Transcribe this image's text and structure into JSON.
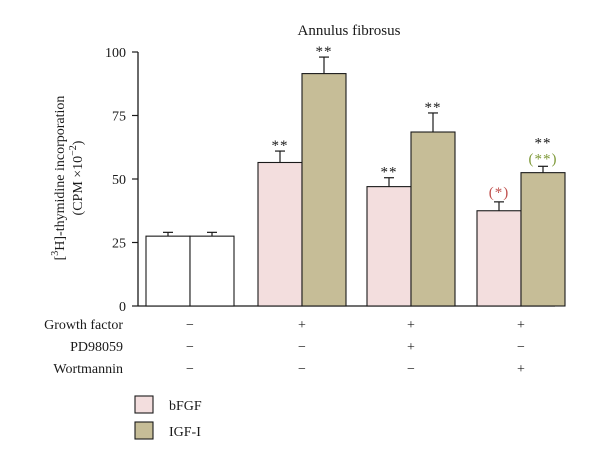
{
  "chart_data": {
    "type": "bar",
    "title": "Annulus fibrosus",
    "ylabel_prefix": "[",
    "ylabel_sup": "3",
    "ylabel_main": "H]-thymidine incorporation",
    "ylabel_unit": "(CPM ×10",
    "ylabel_unit_sup": "−2",
    "ylabel_unit_end": ")",
    "ylim": [
      0,
      100
    ],
    "yticks": [
      "0",
      "25",
      "50",
      "75",
      "100"
    ],
    "grid": false,
    "legend_position": "bottom-left",
    "groups": [
      {
        "growth_factor": "−",
        "pd98059": "−",
        "wortmannin": "−",
        "bars": [
          {
            "series": "control",
            "value": 27.5,
            "error": 1.5,
            "annotation": "",
            "annotation_color": ""
          },
          {
            "series": "control",
            "value": 27.5,
            "error": 1.5,
            "annotation": "",
            "annotation_color": ""
          }
        ]
      },
      {
        "growth_factor": "+",
        "pd98059": "−",
        "wortmannin": "−",
        "bars": [
          {
            "series": "bFGF",
            "value": 56.5,
            "error": 4.5,
            "annotation": "**",
            "annotation_color": "#1a1a1a"
          },
          {
            "series": "IGF-I",
            "value": 91.5,
            "error": 6.5,
            "annotation": "**",
            "annotation_color": "#1a1a1a"
          }
        ]
      },
      {
        "growth_factor": "+",
        "pd98059": "+",
        "wortmannin": "−",
        "bars": [
          {
            "series": "bFGF",
            "value": 47.0,
            "error": 3.5,
            "annotation": "**",
            "annotation_color": "#1a1a1a"
          },
          {
            "series": "IGF-I",
            "value": 68.5,
            "error": 7.5,
            "annotation": "**",
            "annotation_color": "#1a1a1a"
          }
        ]
      },
      {
        "growth_factor": "+",
        "pd98059": "−",
        "wortmannin": "+",
        "bars": [
          {
            "series": "bFGF",
            "value": 37.5,
            "error": 3.5,
            "annotation": "(*)",
            "annotation_color": "#c0504d"
          },
          {
            "series": "IGF-I",
            "value": 52.5,
            "error": 2.5,
            "annotation": "**",
            "annotation_color": "#1a1a1a",
            "annotation2": "(**)",
            "annotation2_color": "#7f9a3a"
          }
        ]
      }
    ],
    "row_labels": [
      "Growth factor",
      "PD98059",
      "Wortmannin"
    ],
    "legend": [
      {
        "name": "bFGF",
        "color": "#f3dede"
      },
      {
        "name": "IGF-I",
        "color": "#c6bd97"
      }
    ],
    "colors": {
      "control": "#ffffff",
      "bFGF": "#f3dede",
      "IGF-I": "#c6bd97",
      "outline": "#1a1a1a"
    }
  }
}
